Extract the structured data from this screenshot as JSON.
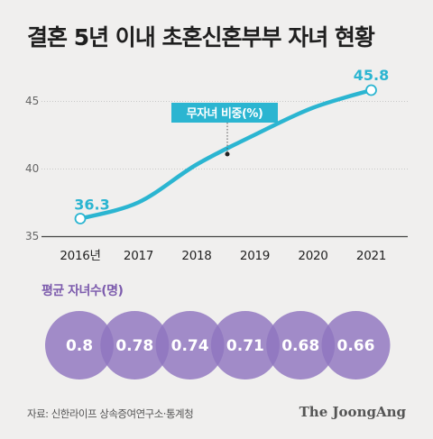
{
  "title": "결혼 5년 이내 초혼신혼부부 자녀 현황",
  "chart_data": [
    {
      "type": "line",
      "x": [
        "2016년",
        "2017",
        "2018",
        "2019",
        "2020",
        "2021"
      ],
      "series": [
        {
          "name": "무자녀 비중(%)",
          "values": [
            36.3,
            37.5,
            40.3,
            42.5,
            44.5,
            45.8
          ]
        }
      ],
      "data_labels": {
        "first": "36.3",
        "last": "45.8"
      },
      "yticks": [
        35,
        40,
        45
      ],
      "ylim": [
        35,
        46.7
      ],
      "color": "#2bb5d1"
    },
    {
      "type": "table",
      "title": "평균 자녀수(명)",
      "x": [
        "2016",
        "2017",
        "2018",
        "2019",
        "2020",
        "2021"
      ],
      "values": [
        "0.8",
        "0.78",
        "0.74",
        "0.71",
        "0.68",
        "0.66"
      ],
      "color": "#8f75bf"
    }
  ],
  "footer": {
    "source": "자료: 신한라이프 상속증여연구소·통계청",
    "brand": "The JoongAng"
  }
}
